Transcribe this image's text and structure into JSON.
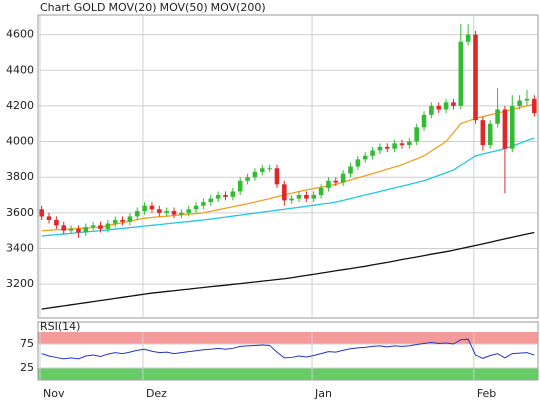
{
  "chart_data": [
    {
      "type": "candlestick",
      "title": "Chart GOLD",
      "title_color": "#e03c31",
      "categories": [
        "Nov",
        null,
        null,
        null,
        null,
        null,
        null,
        null,
        null,
        null,
        null,
        null,
        null,
        null,
        "Dez",
        null,
        null,
        null,
        null,
        null,
        null,
        null,
        null,
        null,
        null,
        null,
        null,
        null,
        null,
        null,
        null,
        null,
        null,
        null,
        null,
        null,
        null,
        "Jan",
        null,
        null,
        null,
        null,
        null,
        null,
        null,
        null,
        null,
        null,
        null,
        null,
        null,
        null,
        null,
        null,
        null,
        null,
        null,
        null,
        null,
        "Feb",
        null,
        null,
        null,
        null,
        null,
        null,
        null,
        null
      ],
      "open": [
        3620,
        3580,
        3560,
        3530,
        3500,
        3510,
        3490,
        3520,
        3530,
        3510,
        3540,
        3560,
        3550,
        3580,
        3610,
        3640,
        3620,
        3600,
        3610,
        3590,
        3600,
        3620,
        3640,
        3660,
        3680,
        3700,
        3690,
        3720,
        3780,
        3800,
        3830,
        3850,
        3850,
        3760,
        3670,
        3680,
        3700,
        3680,
        3700,
        3740,
        3780,
        3770,
        3820,
        3860,
        3900,
        3920,
        3950,
        3970,
        3960,
        3990,
        3980,
        4000,
        4080,
        4150,
        4200,
        4180,
        4220,
        4200,
        4560,
        4600,
        4120,
        3980,
        4100,
        4180,
        3960,
        4200,
        4230,
        4240
      ],
      "high": [
        3640,
        3600,
        3580,
        3550,
        3530,
        3530,
        3540,
        3550,
        3550,
        3560,
        3580,
        3580,
        3600,
        3630,
        3660,
        3660,
        3640,
        3630,
        3630,
        3620,
        3640,
        3660,
        3680,
        3700,
        3720,
        3720,
        3740,
        3800,
        3820,
        3850,
        3870,
        3870,
        3870,
        3780,
        3700,
        3720,
        3720,
        3720,
        3760,
        3800,
        3800,
        3840,
        3880,
        3920,
        3940,
        3970,
        3990,
        3990,
        4010,
        4010,
        4020,
        4100,
        4170,
        4220,
        4220,
        4240,
        4240,
        4660,
        4660,
        4620,
        4140,
        4120,
        4300,
        4200,
        4260,
        4260,
        4290,
        4260
      ],
      "low": [
        3560,
        3540,
        3510,
        3480,
        3480,
        3460,
        3470,
        3500,
        3490,
        3490,
        3520,
        3530,
        3530,
        3560,
        3590,
        3600,
        3580,
        3580,
        3570,
        3570,
        3580,
        3600,
        3620,
        3640,
        3660,
        3670,
        3670,
        3700,
        3760,
        3780,
        3810,
        3830,
        3740,
        3640,
        3650,
        3660,
        3660,
        3660,
        3680,
        3720,
        3750,
        3750,
        3800,
        3840,
        3880,
        3900,
        3930,
        3940,
        3940,
        3960,
        3960,
        3980,
        4060,
        4130,
        4160,
        4160,
        4180,
        4180,
        4540,
        4100,
        3950,
        3960,
        4080,
        3710,
        3940,
        4180,
        4200,
        4140
      ],
      "close": [
        3580,
        3560,
        3530,
        3500,
        3510,
        3490,
        3520,
        3530,
        3510,
        3540,
        3560,
        3550,
        3580,
        3610,
        3640,
        3620,
        3600,
        3610,
        3590,
        3600,
        3620,
        3640,
        3660,
        3680,
        3700,
        3690,
        3720,
        3780,
        3800,
        3830,
        3850,
        3850,
        3760,
        3670,
        3680,
        3700,
        3680,
        3700,
        3740,
        3780,
        3770,
        3820,
        3860,
        3900,
        3920,
        3950,
        3970,
        3960,
        3990,
        3980,
        4000,
        4080,
        4150,
        4200,
        4180,
        4220,
        4200,
        4560,
        4600,
        4120,
        3980,
        4100,
        4180,
        3960,
        4200,
        4230,
        4240,
        4160
      ],
      "up_color": "#33bb33",
      "down_color": "#e02828",
      "series": [
        {
          "name": "MOV(20)",
          "color": "#f0a020",
          "values": [
            3500,
            3502,
            3505,
            3507,
            3510,
            3512,
            3515,
            3517,
            3520,
            3528,
            3537,
            3545,
            3553,
            3562,
            3570,
            3574,
            3578,
            3581,
            3585,
            3589,
            3593,
            3596,
            3600,
            3609,
            3617,
            3626,
            3634,
            3643,
            3651,
            3660,
            3670,
            3680,
            3690,
            3700,
            3710,
            3720,
            3728,
            3736,
            3744,
            3752,
            3760,
            3772,
            3784,
            3796,
            3808,
            3820,
            3832,
            3845,
            3857,
            3870,
            3887,
            3903,
            3920,
            3947,
            3973,
            4000,
            4050,
            4100,
            4115,
            4130,
            4140,
            4150,
            4160,
            4170,
            4180,
            4190,
            4200,
            4210
          ]
        },
        {
          "name": "MOV(50)",
          "color": "#20c8e0",
          "values": [
            3470,
            3474,
            3478,
            3481,
            3485,
            3489,
            3493,
            3496,
            3500,
            3504,
            3509,
            3513,
            3517,
            3521,
            3526,
            3530,
            3534,
            3539,
            3543,
            3547,
            3551,
            3556,
            3560,
            3565,
            3571,
            3576,
            3582,
            3587,
            3593,
            3598,
            3604,
            3609,
            3615,
            3620,
            3626,
            3631,
            3637,
            3643,
            3649,
            3654,
            3660,
            3670,
            3680,
            3690,
            3700,
            3710,
            3720,
            3730,
            3740,
            3750,
            3760,
            3770,
            3780,
            3795,
            3810,
            3825,
            3840,
            3867,
            3893,
            3920,
            3930,
            3940,
            3950,
            3960,
            3975,
            3990,
            4005,
            4020
          ]
        },
        {
          "name": "MOV(200)",
          "color": "#111111",
          "values": [
            3060,
            3066,
            3072,
            3078,
            3084,
            3090,
            3096,
            3102,
            3108,
            3114,
            3120,
            3126,
            3132,
            3138,
            3144,
            3150,
            3154,
            3159,
            3163,
            3168,
            3172,
            3177,
            3181,
            3186,
            3190,
            3194,
            3199,
            3203,
            3208,
            3212,
            3217,
            3221,
            3226,
            3230,
            3236,
            3243,
            3249,
            3255,
            3262,
            3268,
            3275,
            3281,
            3287,
            3294,
            3300,
            3308,
            3315,
            3322,
            3330,
            3338,
            3345,
            3352,
            3360,
            3368,
            3375,
            3382,
            3390,
            3399,
            3408,
            3417,
            3426,
            3435,
            3445,
            3454,
            3463,
            3472,
            3481,
            3490
          ]
        }
      ],
      "ylim": [
        3010,
        4710
      ],
      "yticks": [
        3200,
        3400,
        3600,
        3800,
        4000,
        4200,
        4400,
        4600
      ],
      "grid": true
    },
    {
      "type": "line",
      "series": [
        {
          "name": "RSI(14)",
          "color": "#2233cc",
          "values": [
            55,
            50,
            47,
            44,
            46,
            44,
            50,
            52,
            49,
            54,
            57,
            55,
            58,
            62,
            64,
            60,
            57,
            58,
            55,
            57,
            59,
            61,
            63,
            64,
            66,
            64,
            66,
            70,
            71,
            72,
            73,
            72,
            58,
            46,
            47,
            50,
            48,
            51,
            55,
            59,
            58,
            62,
            65,
            67,
            68,
            70,
            71,
            69,
            71,
            70,
            71,
            74,
            76,
            78,
            76,
            77,
            75,
            84,
            85,
            52,
            45,
            51,
            55,
            46,
            55,
            56,
            57,
            52
          ]
        }
      ],
      "ylim": [
        0,
        100
      ],
      "yticks": [
        25,
        75
      ],
      "overbought_color": "#f59a9a",
      "oversold_color": "#66cc66",
      "grid": true
    }
  ]
}
